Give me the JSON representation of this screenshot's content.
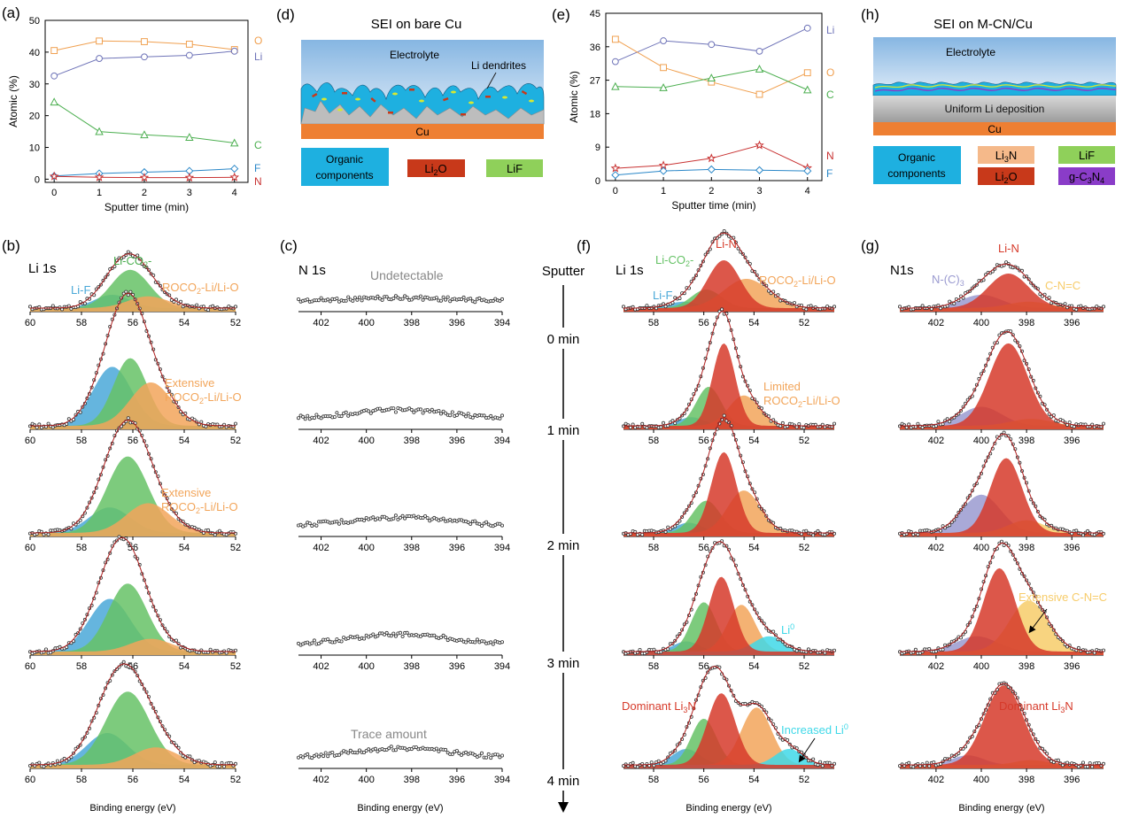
{
  "colors": {
    "O": "#f0a050",
    "Li": "#6f74b8",
    "C": "#4caf50",
    "F": "#2a87c8",
    "N": "#c83232",
    "fit": "#b02020",
    "lif": "#4aa8d8",
    "lico3": "#66c266",
    "roco2": "#f2a55a",
    "li3n": "#d63a2a",
    "li0": "#3fd8e8",
    "nc3": "#9a9ad0",
    "cnc": "#f7cc6a",
    "electrolyte": "#b8d4ec",
    "cu": "#ee7f32",
    "organic": "#1eb0e0",
    "li2o": "#c8391a",
    "lif_box": "#8fd05a",
    "li3n_box": "#f5b98a",
    "gc3n4": "#8a3cc8"
  },
  "panel_labels": {
    "a": "(a)",
    "b": "(b)",
    "c": "(c)",
    "d": "(d)",
    "e": "(e)",
    "f": "(f)",
    "g": "(g)",
    "h": "(h)"
  },
  "chart_data": [
    {
      "id": "a",
      "type": "line",
      "x": [
        0,
        1,
        2,
        3,
        4
      ],
      "xlabel": "Sputter time (min)",
      "ylabel": "Atomic (%)",
      "xlim": [
        -0.2,
        4.3
      ],
      "ylim": [
        -1,
        50
      ],
      "yticks": [
        0,
        10,
        20,
        30,
        40,
        50
      ],
      "xticks": [
        0,
        1,
        2,
        3,
        4
      ],
      "series": [
        {
          "name": "O",
          "marker": "square",
          "color": "#f0a050",
          "values": [
            40.5,
            43.5,
            43.3,
            42.5,
            40.8
          ]
        },
        {
          "name": "Li",
          "marker": "circle",
          "color": "#6f74b8",
          "values": [
            32.5,
            38,
            38.5,
            39,
            40.3
          ]
        },
        {
          "name": "C",
          "marker": "triangle",
          "color": "#4caf50",
          "values": [
            24.3,
            15,
            14,
            13.2,
            11.4
          ]
        },
        {
          "name": "F",
          "marker": "diamond",
          "color": "#2a87c8",
          "values": [
            1,
            1.8,
            2.2,
            2.6,
            3.3
          ]
        },
        {
          "name": "N",
          "marker": "star",
          "color": "#c83232",
          "values": [
            0.9,
            0.6,
            0.5,
            0.5,
            0.6
          ]
        }
      ]
    },
    {
      "id": "e",
      "type": "line",
      "x": [
        0,
        1,
        2,
        3,
        4
      ],
      "xlabel": "Sputter time (min)",
      "ylabel": "Atomic (%)",
      "xlim": [
        -0.2,
        4.3
      ],
      "ylim": [
        0,
        45
      ],
      "yticks": [
        0,
        9,
        18,
        27,
        36,
        45
      ],
      "xticks": [
        0,
        1,
        2,
        3,
        4
      ],
      "series": [
        {
          "name": "Li",
          "marker": "circle",
          "color": "#6f74b8",
          "values": [
            32,
            37.6,
            36.6,
            34.8,
            41
          ]
        },
        {
          "name": "O",
          "marker": "square",
          "color": "#f0a050",
          "values": [
            38,
            30.4,
            26.5,
            23.2,
            29
          ]
        },
        {
          "name": "C",
          "marker": "triangle",
          "color": "#4caf50",
          "values": [
            25.3,
            25,
            27.6,
            30,
            24.4
          ]
        },
        {
          "name": "N",
          "marker": "star",
          "color": "#c83232",
          "values": [
            3.3,
            4.1,
            6,
            9.5,
            3.4
          ]
        },
        {
          "name": "F",
          "marker": "diamond",
          "color": "#2a87c8",
          "values": [
            1.5,
            2.6,
            3,
            2.8,
            2.6
          ]
        }
      ]
    },
    {
      "id": "b",
      "type": "area",
      "title": "Li 1s",
      "xlabel": "Binding energy (eV)",
      "xlim": [
        60,
        52
      ],
      "xticks": [
        60,
        58,
        56,
        54,
        52
      ],
      "spectra": [
        {
          "sputter": "0 min",
          "peaks": [
            {
              "name": "Li-F",
              "center": 56.8,
              "height": 0.25,
              "width": 0.7
            },
            {
              "name": "Li-CO2-",
              "center": 56.1,
              "height": 0.72,
              "width": 0.75
            },
            {
              "name": "ROCO2-Li/Li-O",
              "center": 55.4,
              "height": 0.22,
              "width": 0.8
            }
          ]
        },
        {
          "sputter": "1 min",
          "peaks": [
            {
              "name": "Li-F",
              "center": 56.8,
              "height": 0.68,
              "width": 0.75
            },
            {
              "name": "Li-CO2-",
              "center": 56.1,
              "height": 0.78,
              "width": 0.65
            },
            {
              "name": "ROCO2-Li/Li-O",
              "center": 55.3,
              "height": 0.5,
              "width": 0.8
            }
          ]
        },
        {
          "sputter": "2 min",
          "peaks": [
            {
              "name": "Li-F",
              "center": 56.9,
              "height": 0.3,
              "width": 0.8
            },
            {
              "name": "Li-CO2-",
              "center": 56.2,
              "height": 0.9,
              "width": 0.8
            },
            {
              "name": "ROCO2-Li/Li-O",
              "center": 55.4,
              "height": 0.35,
              "width": 0.85
            }
          ]
        },
        {
          "sputter": "3 min",
          "peaks": [
            {
              "name": "Li-F",
              "center": 56.9,
              "height": 0.62,
              "width": 0.8
            },
            {
              "name": "Li-CO2-",
              "center": 56.2,
              "height": 0.8,
              "width": 0.75
            },
            {
              "name": "ROCO2-Li/Li-O",
              "center": 55.3,
              "height": 0.15,
              "width": 0.8
            }
          ]
        },
        {
          "sputter": "4 min",
          "peaks": [
            {
              "name": "Li-F",
              "center": 57.0,
              "height": 0.4,
              "width": 0.8
            },
            {
              "name": "Li-CO2-",
              "center": 56.2,
              "height": 0.92,
              "width": 0.85
            },
            {
              "name": "ROCO2-Li/Li-O",
              "center": 55.1,
              "height": 0.22,
              "width": 0.85
            }
          ]
        }
      ]
    },
    {
      "id": "c",
      "type": "scatter",
      "title": "N 1s",
      "xlabel": "Binding energy (eV)",
      "xlim": [
        403,
        394
      ],
      "xticks": [
        402,
        400,
        398,
        396,
        394
      ],
      "spectra": [
        {
          "sputter": "0 min",
          "bump": 0.06
        },
        {
          "sputter": "1 min",
          "bump": 0.1
        },
        {
          "sputter": "2 min",
          "bump": 0.1
        },
        {
          "sputter": "3 min",
          "bump": 0.12
        },
        {
          "sputter": "4 min",
          "bump": 0.12
        }
      ]
    },
    {
      "id": "f",
      "type": "area",
      "title": "Li 1s",
      "xlabel": "Binding energy (eV)",
      "xlim": [
        59.2,
        50.8
      ],
      "xticks": [
        58,
        56,
        54,
        52
      ],
      "spectra": [
        {
          "sputter": "0 min",
          "peaks": [
            {
              "name": "Li-F",
              "center": 56.8,
              "height": 0.12,
              "width": 0.6
            },
            {
              "name": "Li-CO2-",
              "center": 55.9,
              "height": 0.35,
              "width": 0.6
            },
            {
              "name": "Li-N",
              "center": 55.2,
              "height": 0.9,
              "width": 0.65
            },
            {
              "name": "ROCO2-Li/Li-O",
              "center": 54.3,
              "height": 0.55,
              "width": 0.9
            }
          ]
        },
        {
          "sputter": "1 min",
          "peaks": [
            {
              "name": "Li-F",
              "center": 56.5,
              "height": 0.1,
              "width": 0.5
            },
            {
              "name": "Li-CO2-",
              "center": 55.8,
              "height": 0.45,
              "width": 0.5
            },
            {
              "name": "Li-N",
              "center": 55.2,
              "height": 0.95,
              "width": 0.45
            },
            {
              "name": "ROCO2-Li/Li-O",
              "center": 54.4,
              "height": 0.35,
              "width": 0.6
            }
          ]
        },
        {
          "sputter": "2 min",
          "peaks": [
            {
              "name": "Li-F",
              "center": 56.6,
              "height": 0.12,
              "width": 0.55
            },
            {
              "name": "Li-CO2-",
              "center": 55.9,
              "height": 0.38,
              "width": 0.55
            },
            {
              "name": "Li-N",
              "center": 55.2,
              "height": 0.95,
              "width": 0.5
            },
            {
              "name": "ROCO2-Li/Li-O",
              "center": 54.4,
              "height": 0.5,
              "width": 0.65
            }
          ]
        },
        {
          "sputter": "3 min",
          "peaks": [
            {
              "name": "Li-F",
              "center": 56.7,
              "height": 0.12,
              "width": 0.5
            },
            {
              "name": "Li-CO2-",
              "center": 56.0,
              "height": 0.58,
              "width": 0.5
            },
            {
              "name": "Li-N",
              "center": 55.3,
              "height": 0.88,
              "width": 0.5
            },
            {
              "name": "ROCO2-Li/Li-O",
              "center": 54.5,
              "height": 0.55,
              "width": 0.55
            },
            {
              "name": "Li0",
              "center": 53.4,
              "height": 0.18,
              "width": 0.6
            }
          ]
        },
        {
          "sputter": "4 min",
          "peaks": [
            {
              "name": "Li-F",
              "center": 56.7,
              "height": 0.2,
              "width": 0.55
            },
            {
              "name": "Li-CO2-",
              "center": 56.0,
              "height": 0.58,
              "width": 0.5
            },
            {
              "name": "Li-N",
              "center": 55.3,
              "height": 0.9,
              "width": 0.55
            },
            {
              "name": "ROCO2-Li/Li-O",
              "center": 53.9,
              "height": 0.72,
              "width": 0.6
            },
            {
              "name": "Li0",
              "center": 52.6,
              "height": 0.2,
              "width": 0.55
            }
          ]
        }
      ]
    },
    {
      "id": "g",
      "type": "area",
      "title": "N1s",
      "xlabel": "Binding energy (eV)",
      "xlim": [
        403.6,
        394.6
      ],
      "xticks": [
        402,
        400,
        398,
        396
      ],
      "spectra": [
        {
          "sputter": "0 min",
          "peaks": [
            {
              "name": "N-(C)3",
              "center": 400.0,
              "height": 0.25,
              "width": 0.9
            },
            {
              "name": "Li-N",
              "center": 398.8,
              "height": 0.65,
              "width": 0.9
            },
            {
              "name": "C-N=C",
              "center": 397.9,
              "height": 0.12,
              "width": 0.9
            }
          ]
        },
        {
          "sputter": "1 min",
          "peaks": [
            {
              "name": "N-(C)3",
              "center": 400.0,
              "height": 0.22,
              "width": 0.9
            },
            {
              "name": "Li-N",
              "center": 398.8,
              "height": 0.95,
              "width": 0.85
            },
            {
              "name": "C-N=C",
              "center": 397.8,
              "height": 0.08,
              "width": 0.9
            }
          ]
        },
        {
          "sputter": "2 min",
          "peaks": [
            {
              "name": "N-(C)3",
              "center": 400.0,
              "height": 0.45,
              "width": 0.85
            },
            {
              "name": "Li-N",
              "center": 398.9,
              "height": 0.88,
              "width": 0.7
            },
            {
              "name": "C-N=C",
              "center": 398.0,
              "height": 0.15,
              "width": 0.8
            }
          ]
        },
        {
          "sputter": "3 min",
          "peaks": [
            {
              "name": "N-(C)3",
              "center": 400.2,
              "height": 0.18,
              "width": 0.9
            },
            {
              "name": "Li-N",
              "center": 399.2,
              "height": 0.98,
              "width": 0.7
            },
            {
              "name": "C-N=C",
              "center": 397.9,
              "height": 0.6,
              "width": 0.85
            }
          ]
        },
        {
          "sputter": "4 min",
          "peaks": [
            {
              "name": "N-(C)3",
              "center": 400.6,
              "height": 0.12,
              "width": 0.7
            },
            {
              "name": "Li-N",
              "center": 399.0,
              "height": 1.0,
              "width": 0.85
            },
            {
              "name": "C-N=C",
              "center": 397.8,
              "height": 0.06,
              "width": 0.7
            }
          ]
        }
      ]
    }
  ],
  "annotations": {
    "a_labels": [
      "O",
      "Li",
      "C",
      "F",
      "N"
    ],
    "e_labels": [
      "Li",
      "O",
      "C",
      "N",
      "F"
    ],
    "b": {
      "lif": "Li-F",
      "lico2_main": "Li-CO",
      "lico2_sub": "2",
      "lico2_end": "-",
      "roco_main": "ROCO",
      "roco_sub": "2",
      "roco_end": "-Li/Li-O",
      "extensive": "Extensive"
    },
    "c": {
      "undetectable": "Undetectable",
      "trace": "Trace amount"
    },
    "f": {
      "lin": "Li-N",
      "lico2_main": "Li-CO",
      "lico2_sub": "2",
      "lico2_end": "-",
      "lif": "Li-F",
      "roco_main": "ROCO",
      "roco_sub": "2",
      "roco_end": "-Li/Li-O",
      "limited": "Limited",
      "li0_main": "Li",
      "li0_sup": "0",
      "dominant_main": "Dominant Li",
      "dominant_sub": "3",
      "dominant_end": "N",
      "increased_main": "Increased Li",
      "increased_sup": "0"
    },
    "g": {
      "lin": "Li-N",
      "nc_main": "N-(C)",
      "nc_sub": "3",
      "cnc": "C-N=C",
      "extensive": "Extensive C-N=C",
      "dominant_main": "Dominant Li",
      "dominant_sub": "3",
      "dominant_end": "N"
    },
    "sputter_title": "Sputter",
    "sputter_times": [
      "0 min",
      "1 min",
      "2 min",
      "3 min",
      "4 min"
    ]
  },
  "schematic_d": {
    "title": "SEI on bare Cu",
    "electrolyte": "Electrolyte",
    "dendrites": "Li dendrites",
    "cu": "Cu",
    "legend": {
      "organic_1": "Organic",
      "organic_2": "components",
      "li2o_main": "Li",
      "li2o_sub": "2",
      "li2o_end": "O",
      "lif": "LiF"
    }
  },
  "schematic_h": {
    "title": "SEI on M-CN/Cu",
    "electrolyte": "Electrolyte",
    "uniform": "Uniform Li deposition",
    "cu": "Cu",
    "legend": {
      "organic_1": "Organic",
      "organic_2": "components",
      "li3n_main": "Li",
      "li3n_sub": "3",
      "li3n_end": "N",
      "li2o_main": "Li",
      "li2o_sub": "2",
      "li2o_end": "O",
      "lif": "LiF",
      "gc3n4_a": "g-C",
      "gc3n4_b": "3",
      "gc3n4_c": "N",
      "gc3n4_d": "4"
    }
  }
}
